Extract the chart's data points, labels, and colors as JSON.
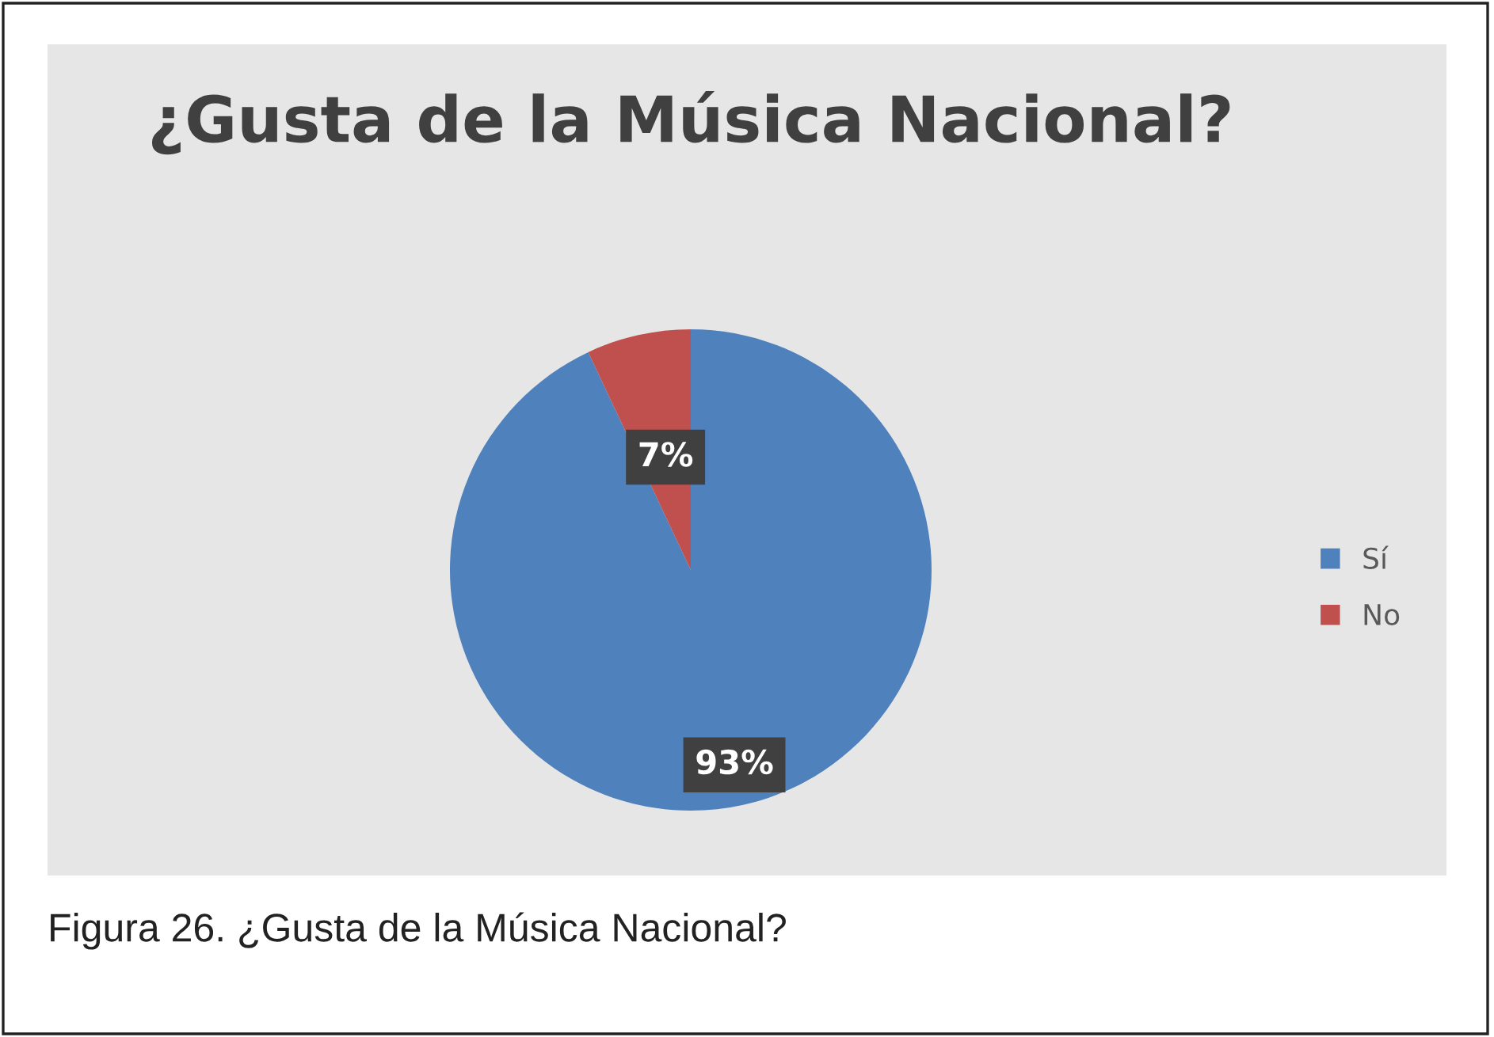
{
  "chart_data": {
    "type": "pie",
    "title": "¿Gusta de la Música Nacional?",
    "categories": [
      "Sí",
      "No"
    ],
    "values": [
      93,
      7
    ],
    "colors": [
      "#4f81bd",
      "#c0504d"
    ],
    "value_labels": [
      "93%",
      "7%"
    ],
    "legend": "right",
    "annotations": [
      "Figura 26. ¿Gusta de la Música Nacional?"
    ]
  }
}
